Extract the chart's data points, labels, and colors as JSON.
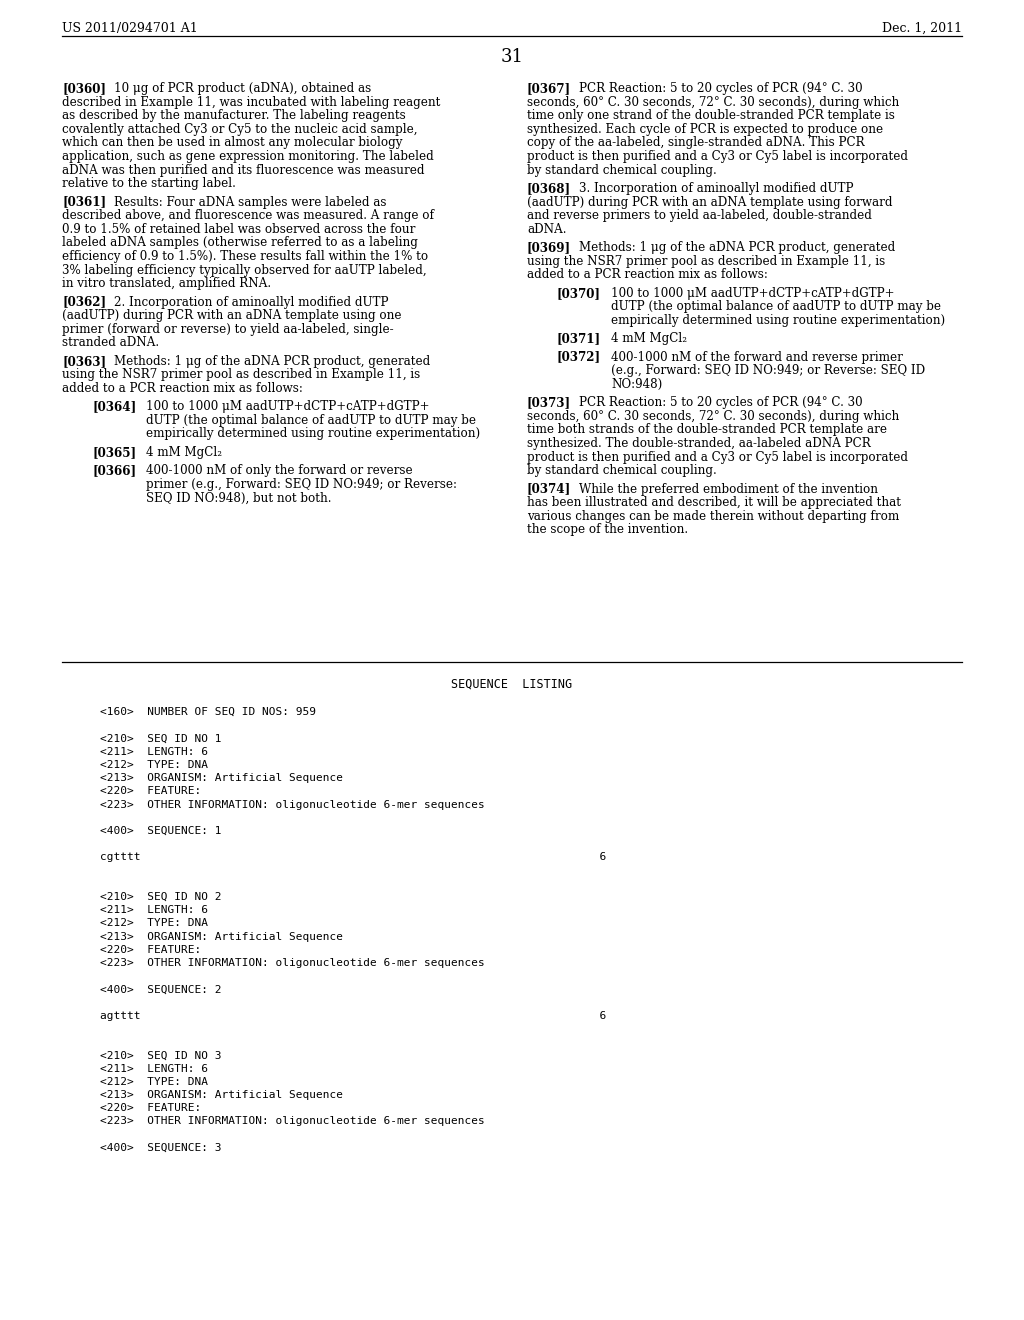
{
  "background_color": "#ffffff",
  "header_left": "US 2011/0294701 A1",
  "header_right": "Dec. 1, 2011",
  "page_number": "31",
  "left_paragraphs": [
    {
      "tag": "[0360]",
      "indent": 0,
      "lines": [
        "10 μg of PCR product (aDNA), obtained as",
        "described in Example 11, was incubated with labeling reagent",
        "as described by the manufacturer. The labeling reagents",
        "covalently attached Cy3 or Cy5 to the nucleic acid sample,",
        "which can then be used in almost any molecular biology",
        "application, such as gene expression monitoring. The labeled",
        "aDNA was then purified and its fluorescence was measured",
        "relative to the starting label."
      ]
    },
    {
      "tag": "[0361]",
      "indent": 0,
      "lines": [
        "Results: Four aDNA samples were labeled as",
        "described above, and fluorescence was measured. A range of",
        "0.9 to 1.5% of retained label was observed across the four",
        "labeled aDNA samples (otherwise referred to as a labeling",
        "efficiency of 0.9 to 1.5%). These results fall within the 1% to",
        "3% labeling efficiency typically observed for aaUTP labeled,",
        "in vitro translated, amplified RNA."
      ]
    },
    {
      "tag": "[0362]",
      "indent": 0,
      "lines": [
        "2. Incorporation of aminoallyl modified dUTP",
        "(aadUTP) during PCR with an aDNA template using one",
        "primer (forward or reverse) to yield aa-labeled, single-",
        "stranded aDNA."
      ]
    },
    {
      "tag": "[0363]",
      "indent": 0,
      "lines": [
        "Methods: 1 μg of the aDNA PCR product, generated",
        "using the NSR7 primer pool as described in Example 11, is",
        "added to a PCR reaction mix as follows:"
      ]
    },
    {
      "tag": "[0364]",
      "indent": 1,
      "lines": [
        "100 to 1000 μM aadUTP+dCTP+cATP+dGTP+",
        "dUTP (the optimal balance of aadUTP to dUTP may be",
        "empirically determined using routine experimentation)"
      ]
    },
    {
      "tag": "[0365]",
      "indent": 1,
      "lines": [
        "4 mM MgCl₂"
      ]
    },
    {
      "tag": "[0366]",
      "indent": 1,
      "lines": [
        "400-1000 nM of only the forward or reverse",
        "primer (e.g., Forward: SEQ ID NO:949; or Reverse:",
        "SEQ ID NO:948), but not both."
      ]
    }
  ],
  "right_paragraphs": [
    {
      "tag": "[0367]",
      "indent": 0,
      "lines": [
        "PCR Reaction: 5 to 20 cycles of PCR (94° C. 30",
        "seconds, 60° C. 30 seconds, 72° C. 30 seconds), during which",
        "time only one strand of the double-stranded PCR template is",
        "synthesized. Each cycle of PCR is expected to produce one",
        "copy of the aa-labeled, single-stranded aDNA. This PCR",
        "product is then purified and a Cy3 or Cy5 label is incorporated",
        "by standard chemical coupling."
      ]
    },
    {
      "tag": "[0368]",
      "indent": 0,
      "lines": [
        "3. Incorporation of aminoallyl modified dUTP",
        "(aadUTP) during PCR with an aDNA template using forward",
        "and reverse primers to yield aa-labeled, double-stranded",
        "aDNA."
      ]
    },
    {
      "tag": "[0369]",
      "indent": 0,
      "lines": [
        "Methods: 1 μg of the aDNA PCR product, generated",
        "using the NSR7 primer pool as described in Example 11, is",
        "added to a PCR reaction mix as follows:"
      ]
    },
    {
      "tag": "[0370]",
      "indent": 1,
      "lines": [
        "100 to 1000 μM aadUTP+dCTP+cATP+dGTP+",
        "dUTP (the optimal balance of aadUTP to dUTP may be",
        "empirically determined using routine experimentation)"
      ]
    },
    {
      "tag": "[0371]",
      "indent": 1,
      "lines": [
        "4 mM MgCl₂"
      ]
    },
    {
      "tag": "[0372]",
      "indent": 1,
      "lines": [
        "400-1000 nM of the forward and reverse primer",
        "(e.g., Forward: SEQ ID NO:949; or Reverse: SEQ ID",
        "NO:948)"
      ]
    },
    {
      "tag": "[0373]",
      "indent": 0,
      "lines": [
        "PCR Reaction: 5 to 20 cycles of PCR (94° C. 30",
        "seconds, 60° C. 30 seconds, 72° C. 30 seconds), during which",
        "time both strands of the double-stranded PCR template are",
        "synthesized. The double-stranded, aa-labeled aDNA PCR",
        "product is then purified and a Cy3 or Cy5 label is incorporated",
        "by standard chemical coupling."
      ]
    },
    {
      "tag": "[0374]",
      "indent": 0,
      "lines": [
        "While the preferred embodiment of the invention",
        "has been illustrated and described, it will be appreciated that",
        "various changes can be made therein without departing from",
        "the scope of the invention."
      ]
    }
  ],
  "sequence_title": "SEQUENCE  LISTING",
  "sequence_lines": [
    "",
    "<160>  NUMBER OF SEQ ID NOS: 959",
    "",
    "<210>  SEQ ID NO 1",
    "<211>  LENGTH: 6",
    "<212>  TYPE: DNA",
    "<213>  ORGANISM: Artificial Sequence",
    "<220>  FEATURE:",
    "<223>  OTHER INFORMATION: oligonucleotide 6-mer sequences",
    "",
    "<400>  SEQUENCE: 1",
    "",
    "cgtttt                                                                    6",
    "",
    "",
    "<210>  SEQ ID NO 2",
    "<211>  LENGTH: 6",
    "<212>  TYPE: DNA",
    "<213>  ORGANISM: Artificial Sequence",
    "<220>  FEATURE:",
    "<223>  OTHER INFORMATION: oligonucleotide 6-mer sequences",
    "",
    "<400>  SEQUENCE: 2",
    "",
    "agtttt                                                                    6",
    "",
    "",
    "<210>  SEQ ID NO 3",
    "<211>  LENGTH: 6",
    "<212>  TYPE: DNA",
    "<213>  ORGANISM: Artificial Sequence",
    "<220>  FEATURE:",
    "<223>  OTHER INFORMATION: oligonucleotide 6-mer sequences",
    "",
    "<400>  SEQUENCE: 3"
  ]
}
